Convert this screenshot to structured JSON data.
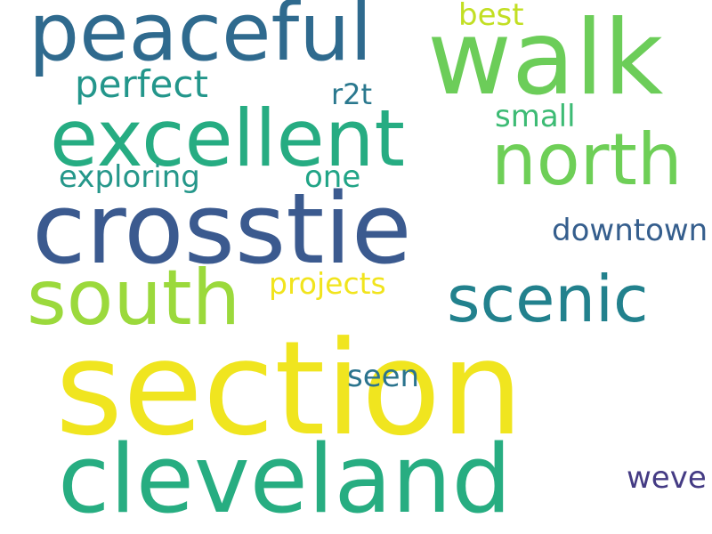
{
  "words": [
    {
      "text": "section",
      "color": "#f0e51f"
    },
    {
      "text": "crosstie",
      "color": "#3b5a8f"
    },
    {
      "text": "cleveland",
      "color": "#27ad81"
    },
    {
      "text": "walk",
      "color": "#6ccd59"
    },
    {
      "text": "peaceful",
      "color": "#2f6a8e"
    },
    {
      "text": "excellent",
      "color": "#26ac82"
    },
    {
      "text": "south",
      "color": "#9bd93c"
    },
    {
      "text": "north",
      "color": "#6ecf57"
    },
    {
      "text": "scenic",
      "color": "#22818d"
    },
    {
      "text": "perfect",
      "color": "#23968b"
    },
    {
      "text": "downtown",
      "color": "#355e8d"
    },
    {
      "text": "exploring",
      "color": "#25978a"
    },
    {
      "text": "projects",
      "color": "#f1e41d"
    },
    {
      "text": "best",
      "color": "#c2df23"
    },
    {
      "text": "small",
      "color": "#3dbb74"
    },
    {
      "text": "seen",
      "color": "#2b748e"
    },
    {
      "text": "weve",
      "color": "#443b84"
    },
    {
      "text": "one",
      "color": "#20a486"
    },
    {
      "text": "r2t",
      "color": "#2a788e"
    }
  ]
}
